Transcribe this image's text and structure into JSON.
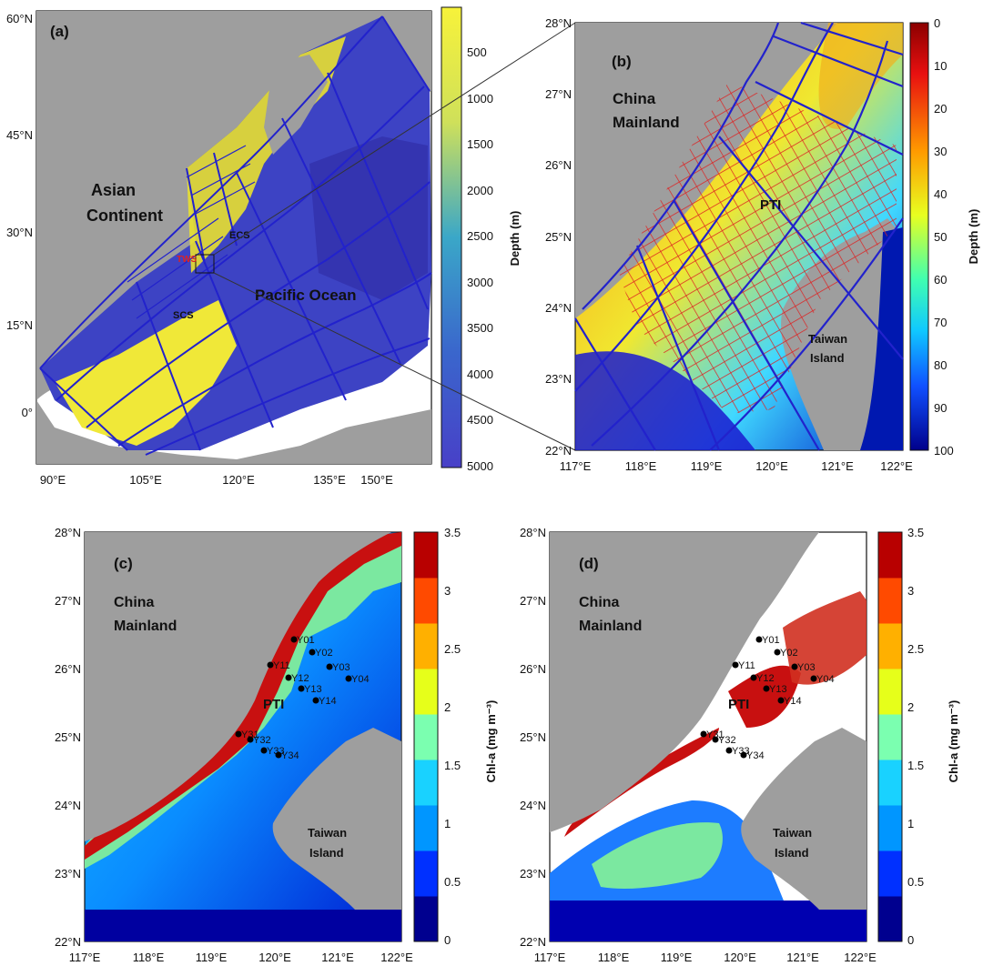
{
  "panels": {
    "a": {
      "label": "(a)",
      "lat_ticks": [
        "60°N",
        "45°N",
        "30°N",
        "15°N",
        "0°"
      ],
      "lon_ticks": [
        "90°E",
        "105°E",
        "120°E",
        "135°E",
        "150°E"
      ],
      "places": {
        "asian_line1": "Asian",
        "asian_line2": "Continent",
        "pacific": "Pacific Ocean",
        "ecs": "ECS",
        "scs": "SCS",
        "tws": "TWS"
      },
      "colorbar": {
        "title": "Depth (m)",
        "ticks": [
          "500",
          "1000",
          "1500",
          "2000",
          "2500",
          "3000",
          "3500",
          "4000",
          "4500",
          "5000"
        ],
        "top_color": "#f7f23a",
        "bottom_color": "#4840c8"
      }
    },
    "b": {
      "label": "(b)",
      "lat_ticks": [
        "28°N",
        "27°N",
        "26°N",
        "25°N",
        "24°N",
        "23°N",
        "22°N"
      ],
      "lon_ticks": [
        "117°E",
        "118°E",
        "119°E",
        "120°E",
        "121°E",
        "122°E"
      ],
      "places": {
        "china_line1": "China",
        "china_line2": "Mainland",
        "pti": "PTI",
        "taiwan_line1": "Taiwan",
        "taiwan_line2": "Island"
      },
      "colorbar": {
        "title": "Depth (m)",
        "ticks": [
          "0",
          "10",
          "20",
          "30",
          "40",
          "50",
          "60",
          "70",
          "80",
          "90",
          "100"
        ],
        "top_color": "#8b0000",
        "bottom_color": "#00008b"
      }
    },
    "c": {
      "label": "(c)",
      "lat_ticks": [
        "28°N",
        "27°N",
        "26°N",
        "25°N",
        "24°N",
        "23°N",
        "22°N"
      ],
      "lon_ticks": [
        "117°E",
        "118°E",
        "119°E",
        "120°E",
        "121°E",
        "122°E"
      ],
      "places": {
        "china_line1": "China",
        "china_line2": "Mainland",
        "pti": "PTI",
        "taiwan_line1": "Taiwan",
        "taiwan_line2": "Island"
      },
      "colorbar": {
        "title": "Chl-a (mg m⁻³)",
        "ticks": [
          "3.5",
          "3",
          "2.5",
          "2",
          "1.5",
          "1",
          "0.5",
          "0"
        ]
      },
      "stations": [
        "Y01",
        "Y02",
        "Y03",
        "Y04",
        "Y11",
        "Y12",
        "Y13",
        "Y14",
        "Y31",
        "Y32",
        "Y33",
        "Y34"
      ]
    },
    "d": {
      "label": "(d)",
      "lat_ticks": [
        "28°N",
        "27°N",
        "26°N",
        "25°N",
        "24°N",
        "23°N",
        "22°N"
      ],
      "lon_ticks": [
        "117°E",
        "118°E",
        "119°E",
        "120°E",
        "121°E",
        "122°E"
      ],
      "places": {
        "china_line1": "China",
        "china_line2": "Mainland",
        "pti": "PTI",
        "taiwan_line1": "Taiwan",
        "taiwan_line2": "Island"
      },
      "colorbar": {
        "title": "Chl-a (mg m⁻³)",
        "ticks": [
          "3.5",
          "3",
          "2.5",
          "2",
          "1.5",
          "1",
          "0.5",
          "0"
        ]
      },
      "stations": [
        "Y01",
        "Y02",
        "Y03",
        "Y04",
        "Y11",
        "Y12",
        "Y13",
        "Y14",
        "Y31",
        "Y32",
        "Y33",
        "Y34"
      ]
    }
  },
  "colors": {
    "land": "#9e9e9e",
    "grid_blue": "#2222cc",
    "grid_red": "#dd2222",
    "chl_scale": [
      "#00008f",
      "#0030ff",
      "#0096ff",
      "#19d2ff",
      "#7bffb0",
      "#e6ff1a",
      "#ffb000",
      "#ff4a00",
      "#b80000"
    ]
  }
}
